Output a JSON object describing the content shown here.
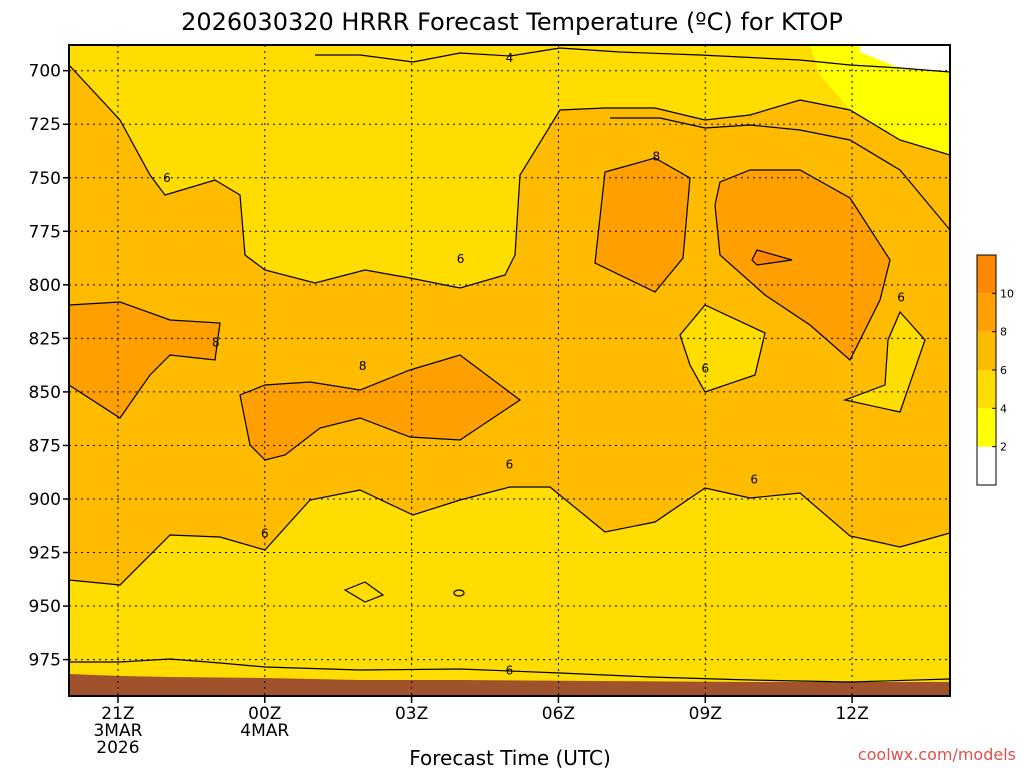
{
  "chart_data": {
    "type": "heatmap",
    "title": "2026030320 HRRR Forecast Temperature (ºC) for KTOP",
    "xlabel": "Forecast Time (UTC)",
    "ylabel": "",
    "credit": "coolwx.com/models",
    "credit_color": "#e05050",
    "x_ticks": [
      {
        "hour": 1,
        "lines": [
          "21Z",
          "3MAR",
          "2026"
        ]
      },
      {
        "hour": 4,
        "lines": [
          "00Z",
          "4MAR"
        ]
      },
      {
        "hour": 7,
        "lines": [
          "03Z"
        ]
      },
      {
        "hour": 10,
        "lines": [
          "06Z"
        ]
      },
      {
        "hour": 13,
        "lines": [
          "09Z"
        ]
      },
      {
        "hour": 16,
        "lines": [
          "12Z"
        ]
      }
    ],
    "xlim": [
      0,
      18
    ],
    "y_ticks": [
      700,
      725,
      750,
      775,
      800,
      825,
      850,
      875,
      900,
      925,
      950,
      975
    ],
    "ylim": [
      688,
      992
    ],
    "y_axis_inverted": true,
    "grid": true,
    "colorbar": {
      "levels": [
        0,
        2,
        4,
        6,
        8,
        10,
        12
      ],
      "labels": [
        "2",
        "4",
        "6",
        "8",
        "10"
      ],
      "colors": [
        "#ffffff",
        "#ffff00",
        "#ffdd00",
        "#ffbb00",
        "#ffa000",
        "#ff8800"
      ]
    },
    "terrain_color": "#a0522d",
    "contour_labels": [
      {
        "text": "4",
        "x": 9.0,
        "y": 694
      },
      {
        "text": "6",
        "x": 2.0,
        "y": 750
      },
      {
        "text": "6",
        "x": 8.0,
        "y": 788
      },
      {
        "text": "8",
        "x": 12.0,
        "y": 740
      },
      {
        "text": "6",
        "x": 17.0,
        "y": 806
      },
      {
        "text": "8",
        "x": 3.0,
        "y": 827
      },
      {
        "text": "8",
        "x": 6.0,
        "y": 838
      },
      {
        "text": "6",
        "x": 13.0,
        "y": 839
      },
      {
        "text": "6",
        "x": 9.0,
        "y": 884
      },
      {
        "text": "6",
        "x": 14.0,
        "y": 891
      },
      {
        "text": "6",
        "x": 4.0,
        "y": 916
      },
      {
        "text": "6",
        "x": 9.0,
        "y": 980
      }
    ]
  }
}
